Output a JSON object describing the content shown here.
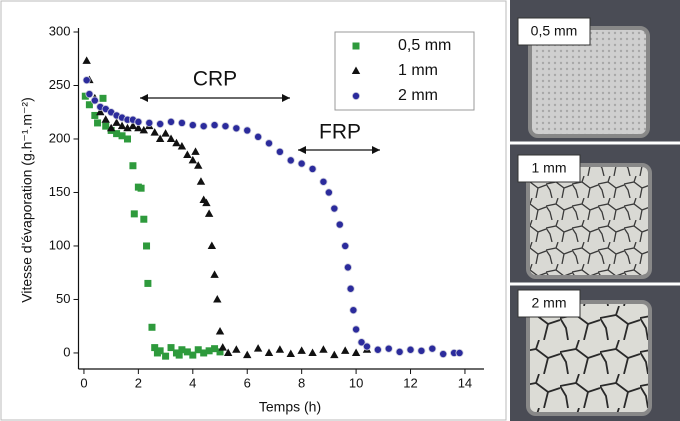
{
  "chart_data": {
    "type": "scatter",
    "x_label": "Temps (h)",
    "y_label": "Vitesse d'évaporation (g.h⁻¹.m⁻²)",
    "annotations": [
      "CRP",
      "FRP"
    ],
    "xlim": [
      -0.2,
      14.7
    ],
    "ylim": [
      -15,
      300
    ],
    "xticks": [
      0,
      2,
      4,
      6,
      8,
      10,
      12,
      14
    ],
    "yticks": [
      0,
      50,
      100,
      150,
      200,
      250,
      300
    ],
    "legend": "upper right",
    "series": [
      {
        "name": "0,5 mm",
        "color": "#2e9a3c",
        "marker": "square",
        "x": [
          0.05,
          0.2,
          0.4,
          0.5,
          0.7,
          0.8,
          1.0,
          1.2,
          1.4,
          1.6,
          1.8,
          1.85,
          2.0,
          2.1,
          2.2,
          2.3,
          2.35,
          2.5,
          2.6,
          2.7,
          2.8,
          3.0,
          3.2,
          3.4,
          3.5,
          3.6,
          3.8,
          4.0,
          4.2,
          4.4,
          4.6,
          4.8,
          5.0
        ],
        "values": [
          240,
          232,
          222,
          215,
          238,
          212,
          208,
          205,
          203,
          200,
          175,
          130,
          155,
          154,
          125,
          100,
          65,
          24,
          5,
          0,
          2,
          -3,
          5,
          0,
          -2,
          3,
          1,
          -2,
          3,
          0,
          2,
          4,
          1
        ]
      },
      {
        "name": "1 mm",
        "color": "#111111",
        "marker": "triangle",
        "x": [
          0.1,
          0.2,
          0.4,
          0.6,
          0.8,
          1.0,
          1.2,
          1.4,
          1.6,
          1.8,
          2.0,
          2.2,
          2.4,
          2.6,
          2.8,
          3.0,
          3.2,
          3.4,
          3.6,
          3.8,
          4.0,
          4.1,
          4.2,
          4.3,
          4.4,
          4.5,
          4.6,
          4.7,
          4.8,
          4.9,
          5.0,
          5.1,
          5.3,
          5.6,
          6.0,
          6.4,
          6.8,
          7.2,
          7.6,
          8.0,
          8.4,
          8.8,
          9.2,
          9.6,
          10.0,
          10.4
        ],
        "values": [
          273,
          255,
          238,
          225,
          218,
          210,
          215,
          212,
          210,
          212,
          210,
          208,
          212,
          206,
          200,
          205,
          200,
          196,
          193,
          185,
          180,
          188,
          175,
          160,
          143,
          140,
          130,
          100,
          73,
          50,
          20,
          5,
          0,
          3,
          -2,
          4,
          0,
          3,
          -1,
          2,
          0,
          3,
          -2,
          2,
          0,
          3
        ]
      },
      {
        "name": "2 mm",
        "color": "#2b2b9c",
        "marker": "circle",
        "x": [
          0.1,
          0.2,
          0.4,
          0.6,
          0.8,
          1.0,
          1.2,
          1.4,
          1.6,
          1.8,
          2.0,
          2.4,
          2.8,
          3.2,
          3.6,
          4.0,
          4.4,
          4.8,
          5.2,
          5.6,
          6.0,
          6.4,
          6.8,
          7.2,
          7.6,
          8.0,
          8.4,
          8.8,
          9.0,
          9.2,
          9.4,
          9.6,
          9.7,
          9.8,
          9.9,
          10.0,
          10.2,
          10.4,
          10.8,
          11.2,
          11.6,
          12.0,
          12.4,
          12.8,
          13.2,
          13.6,
          13.8
        ],
        "values": [
          255,
          242,
          236,
          230,
          228,
          225,
          222,
          220,
          218,
          218,
          216,
          215,
          214,
          216,
          215,
          213,
          212,
          213,
          212,
          210,
          208,
          202,
          196,
          188,
          180,
          177,
          172,
          160,
          150,
          135,
          120,
          100,
          80,
          60,
          40,
          22,
          10,
          6,
          3,
          4,
          1,
          3,
          2,
          4,
          -1,
          0,
          0
        ]
      }
    ]
  },
  "photo_labels": [
    "0,5 mm",
    "1 mm",
    "2 mm"
  ]
}
